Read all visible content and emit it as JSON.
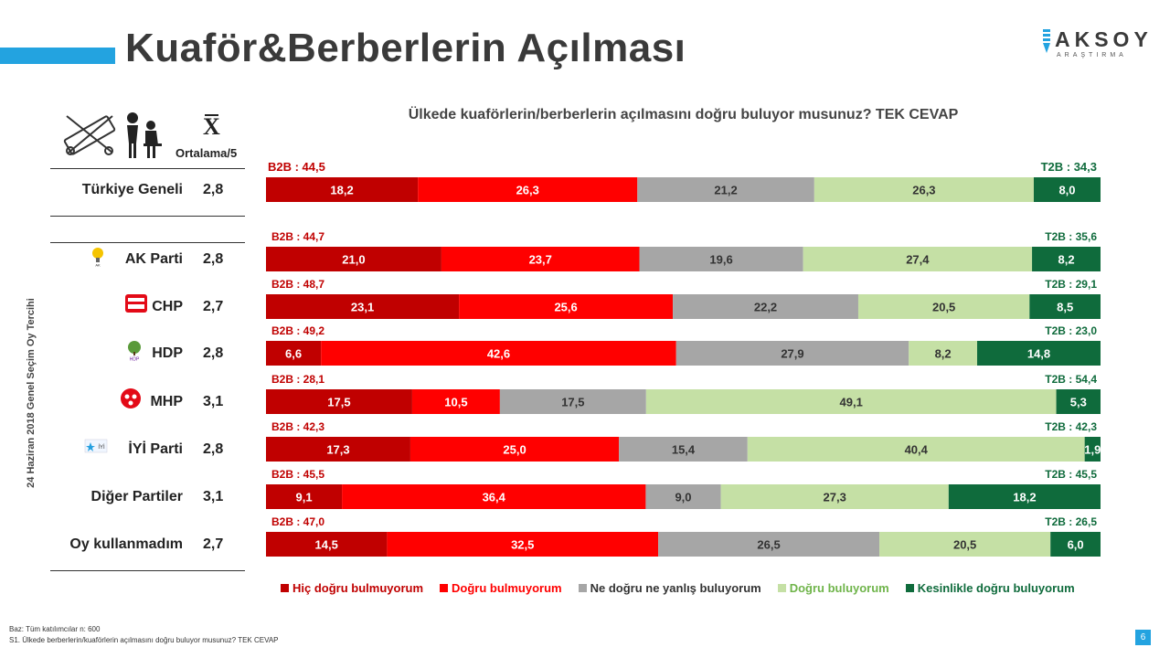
{
  "page": {
    "title": "Kuaför&Berberlerin Açılması",
    "logo_main": "AKSOY",
    "logo_sub": "ARAŞTIRMA",
    "question": "Ülkede kuaförlerin/berberlerin  açılmasını doğru buluyor musunuz? TEK CEVAP",
    "mean_symbol": "X",
    "mean_label": "Ortalama/5",
    "side_label": "24 Haziran 2018 Genel Seçim Oy Tercihi",
    "footnote_base": "Baz: Tüm katılımcılar n: 600",
    "footnote_question": "S1. Ülkede berberlerin/kuaförlerin açılmasını doğru buluyor musunuz? TEK CEVAP",
    "page_number": "6",
    "accent_color": "#23a3e0"
  },
  "chart_data": {
    "type": "bar",
    "orientation": "horizontal",
    "stacked": true,
    "percent": true,
    "series": [
      {
        "name": "Hiç doğru bulmuyorum",
        "color": "#c00000"
      },
      {
        "name": "Doğru bulmuyorum",
        "color": "#ff0000"
      },
      {
        "name": "Ne doğru ne yanlış buluyorum",
        "color": "#a6a6a6"
      },
      {
        "name": "Doğru buluyorum",
        "color": "#c5e0a5"
      },
      {
        "name": "Kesinlikle doğru buluyorum",
        "color": "#0f6b3c"
      }
    ],
    "rows": [
      {
        "label": "Türkiye Geneli",
        "mean": "2,8",
        "b2b": "B2B : 44,5",
        "t2b": "T2B : 34,3",
        "values": [
          18.2,
          26.3,
          21.2,
          26.3,
          8.0
        ],
        "value_labels": [
          "18,2",
          "26,3",
          "21,2",
          "26,3",
          "8,0"
        ],
        "icon": ""
      },
      {
        "label": "AK Parti",
        "mean": "2,8",
        "b2b": "B2B : 44,7",
        "t2b": "T2B : 35,6",
        "values": [
          21.0,
          23.7,
          19.6,
          27.4,
          8.2
        ],
        "value_labels": [
          "21,0",
          "23,7",
          "19,6",
          "27,4",
          "8,2"
        ],
        "icon": "akparti-logo-icon"
      },
      {
        "label": "CHP",
        "mean": "2,7",
        "b2b": "B2B : 48,7",
        "t2b": "T2B : 29,1",
        "values": [
          23.1,
          25.6,
          22.2,
          20.5,
          8.5
        ],
        "value_labels": [
          "23,1",
          "25,6",
          "22,2",
          "20,5",
          "8,5"
        ],
        "icon": "chp-logo-icon"
      },
      {
        "label": "HDP",
        "mean": "2,8",
        "b2b": "B2B : 49,2",
        "t2b": "T2B : 23,0",
        "values": [
          6.6,
          42.6,
          27.9,
          8.2,
          14.8
        ],
        "value_labels": [
          "6,6",
          "42,6",
          "27,9",
          "8,2",
          "14,8"
        ],
        "icon": "hdp-logo-icon"
      },
      {
        "label": "MHP",
        "mean": "3,1",
        "b2b": "B2B : 28,1",
        "t2b": "T2B : 54,4",
        "values": [
          17.5,
          10.5,
          17.5,
          49.1,
          5.3
        ],
        "value_labels": [
          "17,5",
          "10,5",
          "17,5",
          "49,1",
          "5,3"
        ],
        "icon": "mhp-logo-icon"
      },
      {
        "label": "İYİ Parti",
        "mean": "2,8",
        "b2b": "B2B : 42,3",
        "t2b": "T2B : 42,3",
        "values": [
          17.3,
          25.0,
          15.4,
          40.4,
          1.9
        ],
        "value_labels": [
          "17,3",
          "25,0",
          "15,4",
          "40,4",
          "1,9"
        ],
        "icon": "iyi-parti-logo-icon"
      },
      {
        "label": "Diğer Partiler",
        "mean": "3,1",
        "b2b": "B2B : 45,5",
        "t2b": "T2B : 45,5",
        "values": [
          9.1,
          36.4,
          9.0,
          27.3,
          18.2
        ],
        "value_labels": [
          "9,1",
          "36,4",
          "9,0",
          "27,3",
          "18,2"
        ],
        "icon": ""
      },
      {
        "label": "Oy kullanmadım",
        "mean": "2,7",
        "b2b": "B2B : 47,0",
        "t2b": "T2B : 26,5",
        "values": [
          14.5,
          32.5,
          26.5,
          20.5,
          6.0
        ],
        "value_labels": [
          "14,5",
          "32,5",
          "26,5",
          "20,5",
          "6,0"
        ],
        "icon": ""
      }
    ],
    "legend_position": "bottom",
    "grid": false
  }
}
